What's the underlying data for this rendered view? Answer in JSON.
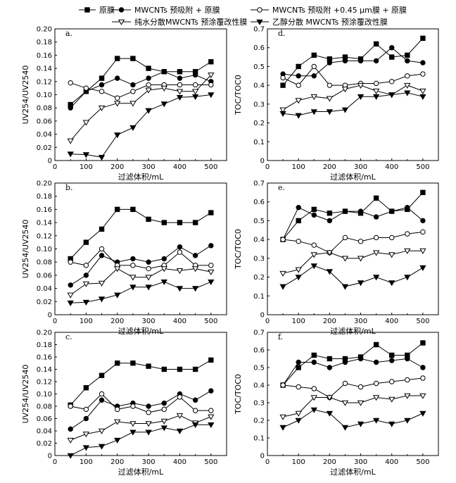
{
  "legend": {
    "items": [
      {
        "label": "原膜",
        "marker": "square-filled"
      },
      {
        "label": "MWCNTs 预吸附 + 原膜",
        "marker": "circle-filled"
      },
      {
        "label": "MWCNTs 预吸附 +0.45 μm膜 + 原膜",
        "marker": "circle-open"
      },
      {
        "label": "纯水分散MWCNTs 预涂覆改性膜",
        "marker": "triangle-down-open"
      },
      {
        "label": "乙醇分散 MWCNTs 预涂覆改性膜",
        "marker": "triangle-down-filled"
      }
    ]
  },
  "chart_data": [
    {
      "panel": "a.",
      "type": "line",
      "xlabel": "过滤体积/mL",
      "ylabel": "UV254/UV2540",
      "xlim": [
        0,
        550
      ],
      "ylim": [
        0,
        0.2
      ],
      "xticks": [
        "0",
        "100",
        "200",
        "300",
        "400",
        "500"
      ],
      "yticks": [
        "0",
        "0.02",
        "0.04",
        "0.06",
        "0.08",
        "0.10",
        "0.12",
        "0.14",
        "0.16",
        "0.18",
        "0.20"
      ],
      "x": [
        50,
        100,
        150,
        200,
        250,
        300,
        350,
        400,
        450,
        500
      ],
      "series": [
        {
          "name": "原膜",
          "values": [
            0.085,
            0.105,
            0.125,
            0.155,
            0.155,
            0.14,
            0.135,
            0.135,
            0.135,
            0.15
          ]
        },
        {
          "name": "MWCNTs 预吸附 + 原膜",
          "values": [
            0.08,
            0.105,
            0.115,
            0.125,
            0.115,
            0.125,
            0.135,
            0.125,
            0.13,
            0.12
          ]
        },
        {
          "name": "MWCNTs 预吸附 +0.45 μm膜 + 原膜",
          "values": [
            0.118,
            0.11,
            0.105,
            0.095,
            0.105,
            0.115,
            0.115,
            0.115,
            0.115,
            0.115
          ]
        },
        {
          "name": "纯水分散MWCNTs 预涂覆改性膜",
          "values": [
            0.03,
            0.058,
            0.08,
            0.087,
            0.087,
            0.107,
            0.11,
            0.105,
            0.105,
            0.13
          ]
        },
        {
          "name": "乙醇分散 MWCNTs 预涂覆改性膜",
          "values": [
            0.01,
            0.009,
            0.005,
            0.039,
            0.05,
            0.076,
            0.086,
            0.096,
            0.097,
            0.1
          ]
        }
      ]
    },
    {
      "panel": "b.",
      "type": "line",
      "xlabel": "过滤体积/mL",
      "ylabel": "UV254/UV2540",
      "xlim": [
        0,
        550
      ],
      "ylim": [
        0,
        0.2
      ],
      "xticks": [
        "0",
        "100",
        "200",
        "300",
        "400",
        "500"
      ],
      "yticks": [
        "0",
        "0.02",
        "0.04",
        "0.06",
        "0.08",
        "0.10",
        "0.12",
        "0.14",
        "0.16",
        "0.18",
        "0.20"
      ],
      "x": [
        50,
        100,
        150,
        200,
        250,
        300,
        350,
        400,
        450,
        500
      ],
      "series": [
        {
          "name": "原膜",
          "values": [
            0.085,
            0.11,
            0.13,
            0.16,
            0.16,
            0.145,
            0.14,
            0.14,
            0.14,
            0.155
          ]
        },
        {
          "name": "MWCNTs 预吸附 + 原膜",
          "values": [
            0.045,
            0.06,
            0.09,
            0.08,
            0.085,
            0.08,
            0.085,
            0.103,
            0.09,
            0.105
          ]
        },
        {
          "name": "MWCNTs 预吸附 +0.45 μm膜 + 原膜",
          "values": [
            0.08,
            0.075,
            0.1,
            0.075,
            0.075,
            0.07,
            0.075,
            0.095,
            0.075,
            0.075
          ]
        },
        {
          "name": "纯水分散MWCNTs 预涂覆改性膜",
          "values": [
            0.03,
            0.047,
            0.048,
            0.07,
            0.057,
            0.057,
            0.07,
            0.067,
            0.07,
            0.065
          ]
        },
        {
          "name": "乙醇分散 MWCNTs 预涂覆改性膜",
          "values": [
            0.018,
            0.019,
            0.024,
            0.03,
            0.042,
            0.042,
            0.05,
            0.04,
            0.04,
            0.05
          ]
        }
      ]
    },
    {
      "panel": "c.",
      "type": "line",
      "xlabel": "过滤体积/mL",
      "ylabel": "UV254/UV2540",
      "xlim": [
        0,
        550
      ],
      "ylim": [
        0,
        0.2
      ],
      "xticks": [
        "0",
        "100",
        "200",
        "300",
        "400",
        "500"
      ],
      "yticks": [
        "0",
        "0.02",
        "0.04",
        "0.06",
        "0.08",
        "0.10",
        "0.12",
        "0.14",
        "0.16",
        "0.18",
        "0.20"
      ],
      "x": [
        50,
        100,
        150,
        200,
        250,
        300,
        350,
        400,
        450,
        500
      ],
      "series": [
        {
          "name": "原膜",
          "values": [
            0.082,
            0.11,
            0.13,
            0.15,
            0.15,
            0.145,
            0.14,
            0.14,
            0.14,
            0.155
          ]
        },
        {
          "name": "MWCNTs 预吸附 + 原膜",
          "values": [
            0.043,
            0.06,
            0.09,
            0.08,
            0.085,
            0.08,
            0.085,
            0.1,
            0.09,
            0.105
          ]
        },
        {
          "name": "MWCNTs 预吸附 +0.45 μm膜 + 原膜",
          "values": [
            0.08,
            0.075,
            0.1,
            0.075,
            0.08,
            0.07,
            0.075,
            0.095,
            0.073,
            0.073
          ]
        },
        {
          "name": "纯水分散MWCNTs 预涂覆改性膜",
          "values": [
            0.025,
            0.035,
            0.04,
            0.055,
            0.052,
            0.052,
            0.056,
            0.065,
            0.053,
            0.063
          ]
        },
        {
          "name": "乙醇分散 MWCNTs 预涂覆改性膜",
          "values": [
            0.0,
            0.013,
            0.015,
            0.025,
            0.038,
            0.038,
            0.045,
            0.04,
            0.05,
            0.05
          ]
        }
      ]
    },
    {
      "panel": "d.",
      "type": "line",
      "xlabel": "过滤体积/mL",
      "ylabel": "TOC/TOC0",
      "xlim": [
        0,
        550
      ],
      "ylim": [
        0,
        0.7
      ],
      "xticks": [
        "0",
        "100",
        "200",
        "300",
        "400",
        "500"
      ],
      "yticks": [
        "0",
        "0.1",
        "0.2",
        "0.3",
        "0.4",
        "0.5",
        "0.6",
        "0.7"
      ],
      "x": [
        50,
        100,
        150,
        200,
        250,
        300,
        350,
        400,
        450,
        500
      ],
      "series": [
        {
          "name": "原膜",
          "values": [
            0.4,
            0.5,
            0.56,
            0.54,
            0.55,
            0.54,
            0.62,
            0.55,
            0.56,
            0.65
          ]
        },
        {
          "name": "MWCNTs 预吸附 + 原膜",
          "values": [
            0.46,
            0.45,
            0.45,
            0.52,
            0.53,
            0.53,
            0.53,
            0.6,
            0.53,
            0.52
          ]
        },
        {
          "name": "MWCNTs 预吸附 +0.45 μm膜 + 原膜",
          "values": [
            0.44,
            0.4,
            0.5,
            0.4,
            0.4,
            0.41,
            0.41,
            0.42,
            0.45,
            0.46
          ]
        },
        {
          "name": "纯水分散MWCNTs 预涂覆改性膜",
          "values": [
            0.27,
            0.32,
            0.34,
            0.33,
            0.38,
            0.4,
            0.37,
            0.35,
            0.4,
            0.37
          ]
        },
        {
          "name": "乙醇分散 MWCNTs 预涂覆改性膜",
          "values": [
            0.25,
            0.24,
            0.26,
            0.26,
            0.27,
            0.34,
            0.34,
            0.35,
            0.36,
            0.34
          ]
        }
      ]
    },
    {
      "panel": "e.",
      "type": "line",
      "xlabel": "过滤体积/mL",
      "ylabel": "TOC/TOC0",
      "xlim": [
        0,
        550
      ],
      "ylim": [
        0,
        0.7
      ],
      "xticks": [
        "0",
        "100",
        "200",
        "300",
        "400",
        "500"
      ],
      "yticks": [
        "0",
        "0.1",
        "0.2",
        "0.3",
        "0.4",
        "0.5",
        "0.6",
        "0.7"
      ],
      "x": [
        50,
        100,
        150,
        200,
        250,
        300,
        350,
        400,
        450,
        500
      ],
      "series": [
        {
          "name": "原膜",
          "values": [
            0.4,
            0.5,
            0.56,
            0.54,
            0.55,
            0.54,
            0.62,
            0.55,
            0.56,
            0.65
          ]
        },
        {
          "name": "MWCNTs 预吸附 + 原膜",
          "values": [
            0.4,
            0.57,
            0.53,
            0.5,
            0.55,
            0.55,
            0.52,
            0.55,
            0.57,
            0.5
          ]
        },
        {
          "name": "MWCNTs 预吸附 +0.45 μm膜 + 原膜",
          "values": [
            0.4,
            0.39,
            0.37,
            0.33,
            0.41,
            0.39,
            0.41,
            0.41,
            0.43,
            0.44
          ]
        },
        {
          "name": "纯水分散MWCNTs 预涂覆改性膜",
          "values": [
            0.22,
            0.24,
            0.32,
            0.33,
            0.3,
            0.3,
            0.33,
            0.32,
            0.34,
            0.34
          ]
        },
        {
          "name": "乙醇分散 MWCNTs 预涂覆改性膜",
          "values": [
            0.15,
            0.2,
            0.26,
            0.23,
            0.15,
            0.17,
            0.2,
            0.17,
            0.2,
            0.25
          ]
        }
      ]
    },
    {
      "panel": "f.",
      "type": "line",
      "xlabel": "过滤体积/mL",
      "ylabel": "TOC/TOC0",
      "xlim": [
        0,
        550
      ],
      "ylim": [
        0,
        0.7
      ],
      "xticks": [
        "0",
        "100",
        "200",
        "300",
        "400",
        "500"
      ],
      "yticks": [
        "0",
        "0.1",
        "0.2",
        "0.3",
        "0.4",
        "0.5",
        "0.6",
        "0.7"
      ],
      "x": [
        50,
        100,
        150,
        200,
        250,
        300,
        350,
        400,
        450,
        500
      ],
      "series": [
        {
          "name": "原膜",
          "values": [
            0.4,
            0.5,
            0.57,
            0.55,
            0.55,
            0.56,
            0.63,
            0.57,
            0.57,
            0.64
          ]
        },
        {
          "name": "MWCNTs 预吸附 + 原膜",
          "values": [
            0.4,
            0.53,
            0.53,
            0.5,
            0.53,
            0.55,
            0.53,
            0.54,
            0.55,
            0.5
          ]
        },
        {
          "name": "MWCNTs 预吸附 +0.45 μm膜 + 原膜",
          "values": [
            0.4,
            0.39,
            0.38,
            0.33,
            0.41,
            0.39,
            0.41,
            0.42,
            0.43,
            0.44
          ]
        },
        {
          "name": "纯水分散MWCNTs 预涂覆改性膜",
          "values": [
            0.22,
            0.24,
            0.33,
            0.33,
            0.3,
            0.3,
            0.33,
            0.32,
            0.34,
            0.34
          ]
        },
        {
          "name": "乙醇分散 MWCNTs 预涂覆改性膜",
          "values": [
            0.16,
            0.2,
            0.26,
            0.24,
            0.16,
            0.18,
            0.2,
            0.18,
            0.2,
            0.24
          ]
        }
      ]
    }
  ]
}
